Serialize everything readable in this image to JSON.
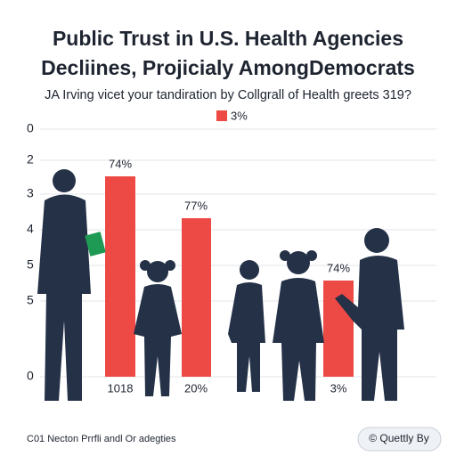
{
  "header": {
    "title_line1": "Public Trust in U.S. Health Agencies",
    "title_line2": "Decliines, Projicialy AmongDemocrats",
    "subtitle": "JA Irving vicet your tandiration by Collgrall of Health greets 319?"
  },
  "legend": {
    "label": "3%"
  },
  "axis_labels": [
    "0",
    "2",
    "3",
    "4",
    "5",
    "5",
    "0"
  ],
  "bars": [
    {
      "top_label": "74%",
      "bottom_label": "1018"
    },
    {
      "top_label": "77%",
      "bottom_label": "20%"
    },
    {
      "top_label": "74%",
      "bottom_label": "3%"
    }
  ],
  "footer": {
    "source": "C01 Necton Prrfli andl Or adegties",
    "button": "© Quettly By"
  }
}
